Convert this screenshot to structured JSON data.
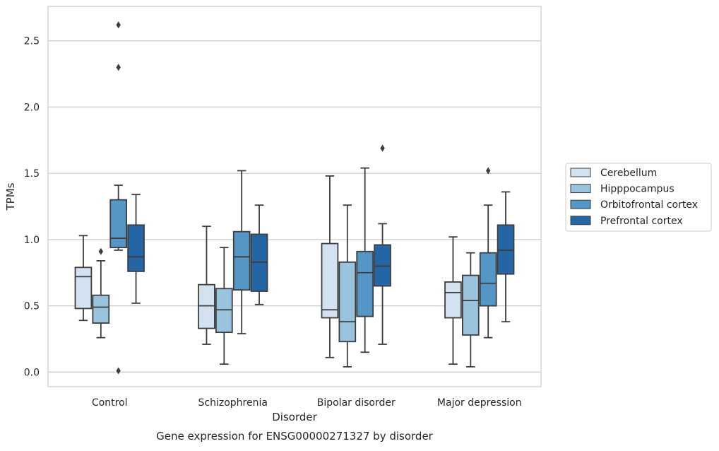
{
  "caption": "Gene expression for ENSG00000271327 by disorder",
  "chart_data": {
    "type": "box",
    "xlabel": "Disorder",
    "ylabel": "TPMs",
    "ylim": [
      -0.11,
      2.76
    ],
    "yticks": [
      0.0,
      0.5,
      1.0,
      1.5,
      2.0,
      2.5
    ],
    "ytick_labels": [
      "0.0",
      "0.5",
      "1.0",
      "1.5",
      "2.0",
      "2.5"
    ],
    "grid": "horizontal",
    "legend_position": "right",
    "categories": [
      "Control",
      "Schizophrenia",
      "Bipolar disorder",
      "Major depression"
    ],
    "series": [
      {
        "name": "Cerebellum",
        "color": "#d2e2f0",
        "boxes": [
          {
            "whisker_low": 0.39,
            "q1": 0.48,
            "median": 0.72,
            "q3": 0.79,
            "whisker_high": 1.03,
            "outliers": []
          },
          {
            "whisker_low": 0.21,
            "q1": 0.33,
            "median": 0.5,
            "q3": 0.66,
            "whisker_high": 1.1,
            "outliers": []
          },
          {
            "whisker_low": 0.11,
            "q1": 0.41,
            "median": 0.47,
            "q3": 0.97,
            "whisker_high": 1.48,
            "outliers": []
          },
          {
            "whisker_low": 0.06,
            "q1": 0.41,
            "median": 0.6,
            "q3": 0.68,
            "whisker_high": 1.02,
            "outliers": []
          }
        ]
      },
      {
        "name": "Hipppocampus",
        "color": "#9ac3dd",
        "boxes": [
          {
            "whisker_low": 0.26,
            "q1": 0.37,
            "median": 0.49,
            "q3": 0.58,
            "whisker_high": 0.84,
            "outliers": [
              0.91
            ]
          },
          {
            "whisker_low": 0.06,
            "q1": 0.3,
            "median": 0.47,
            "q3": 0.63,
            "whisker_high": 0.94,
            "outliers": []
          },
          {
            "whisker_low": 0.04,
            "q1": 0.23,
            "median": 0.38,
            "q3": 0.83,
            "whisker_high": 1.26,
            "outliers": []
          },
          {
            "whisker_low": 0.04,
            "q1": 0.28,
            "median": 0.54,
            "q3": 0.73,
            "whisker_high": 0.9,
            "outliers": []
          }
        ]
      },
      {
        "name": "Orbitofrontal cortex",
        "color": "#5497c7",
        "boxes": [
          {
            "whisker_low": 0.92,
            "q1": 0.94,
            "median": 1.01,
            "q3": 1.3,
            "whisker_high": 1.41,
            "outliers": [
              2.3,
              2.62,
              0.01
            ]
          },
          {
            "whisker_low": 0.29,
            "q1": 0.62,
            "median": 0.87,
            "q3": 1.06,
            "whisker_high": 1.52,
            "outliers": []
          },
          {
            "whisker_low": 0.15,
            "q1": 0.42,
            "median": 0.75,
            "q3": 0.91,
            "whisker_high": 1.54,
            "outliers": []
          },
          {
            "whisker_low": 0.26,
            "q1": 0.5,
            "median": 0.67,
            "q3": 0.9,
            "whisker_high": 1.26,
            "outliers": [
              1.52
            ]
          }
        ]
      },
      {
        "name": "Prefrontal cortex",
        "color": "#2465a6",
        "boxes": [
          {
            "whisker_low": 0.52,
            "q1": 0.76,
            "median": 0.87,
            "q3": 1.11,
            "whisker_high": 1.34,
            "outliers": []
          },
          {
            "whisker_low": 0.51,
            "q1": 0.61,
            "median": 0.83,
            "q3": 1.04,
            "whisker_high": 1.26,
            "outliers": []
          },
          {
            "whisker_low": 0.21,
            "q1": 0.65,
            "median": 0.8,
            "q3": 0.96,
            "whisker_high": 1.12,
            "outliers": [
              1.69
            ]
          },
          {
            "whisker_low": 0.38,
            "q1": 0.74,
            "median": 0.92,
            "q3": 1.11,
            "whisker_high": 1.36,
            "outliers": []
          }
        ]
      }
    ]
  }
}
